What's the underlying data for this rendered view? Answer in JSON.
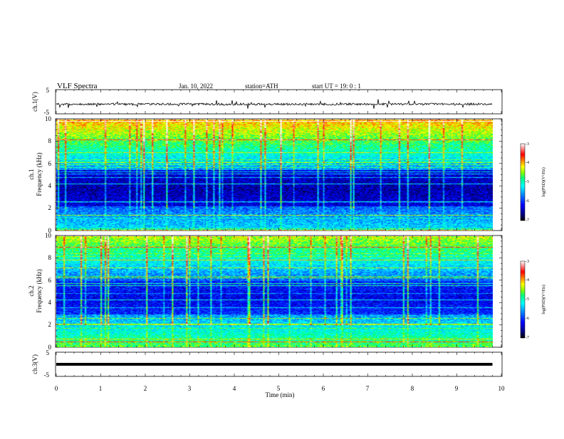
{
  "header": {
    "title": "VLF  Spectra",
    "date": "Jan. 10, 2022",
    "station": "station=ATH",
    "start": "start  UT  =   19: 0  : 1"
  },
  "chart_data": [
    {
      "type": "line",
      "ylabel": "ch.1(V)",
      "ylim": [
        -5,
        5
      ],
      "ytick_labels": [
        "5",
        "-5"
      ],
      "xlim": [
        0,
        10
      ],
      "series_mean": -1.0,
      "color": "#000000"
    },
    {
      "type": "heatmap",
      "ylabel_channel": "ch.1",
      "ylabel": "Frequency (kHz)",
      "ylim": [
        0,
        10
      ],
      "ytick_labels": [
        "0",
        "2",
        "4",
        "6",
        "8",
        "10"
      ],
      "xlim": [
        0,
        10
      ],
      "colorbar": {
        "label": "log(PSD)(V²/Hz)",
        "range": [
          -7,
          -3
        ],
        "tick_labels": [
          "-3",
          "-4",
          "-5",
          "-6",
          "-7"
        ],
        "colors": [
          "#000000",
          "#000080",
          "#0000ff",
          "#0080ff",
          "#00ffff",
          "#00ff80",
          "#80ff00",
          "#ffff00",
          "#ff8000",
          "#ff0000",
          "#ffffff"
        ]
      }
    },
    {
      "type": "heatmap",
      "ylabel_channel": "ch.2",
      "ylabel": "Frequency (kHz)",
      "ylim": [
        0,
        10
      ],
      "ytick_labels": [
        "0",
        "2",
        "4",
        "6",
        "8",
        "10"
      ],
      "xlim": [
        0,
        10
      ],
      "colorbar": {
        "label": "log(PSD)(V²/Hz)",
        "range": [
          -7,
          -3
        ],
        "tick_labels": [
          "-3",
          "-4",
          "-5",
          "-6",
          "-7"
        ]
      }
    },
    {
      "type": "line",
      "ylabel": "ch.3(V)",
      "ylim": [
        -5,
        5
      ],
      "ytick_labels": [
        "5",
        "-5"
      ],
      "xlim": [
        0,
        10
      ],
      "series_mean": 0.0,
      "color": "#000000"
    }
  ],
  "xaxis": {
    "label": "Time  (min)",
    "tick_labels": [
      "0",
      "1",
      "2",
      "3",
      "4",
      "5",
      "6",
      "7",
      "8",
      "9",
      "10"
    ],
    "data_end_min": 9.8
  }
}
